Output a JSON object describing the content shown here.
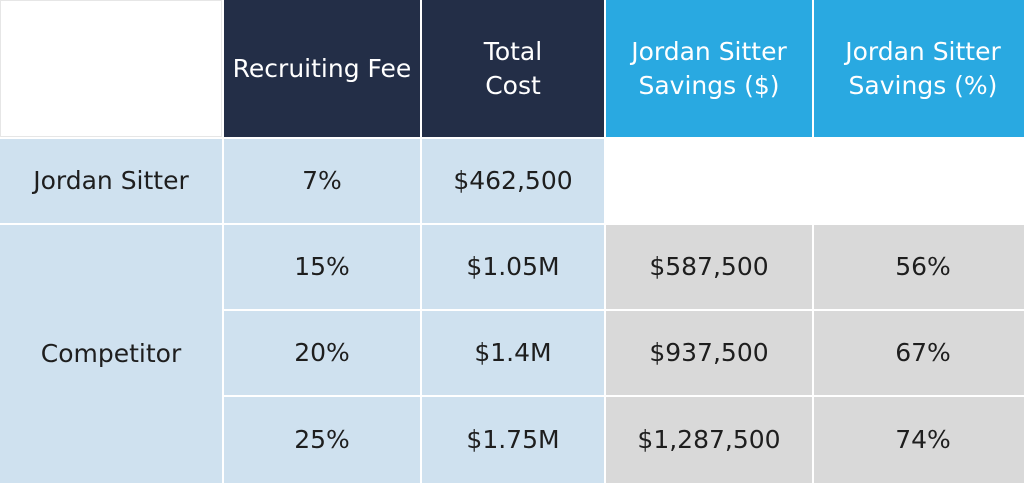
{
  "headers": {
    "recruiting_fee": "Recruiting Fee",
    "total_cost": "Total Cost",
    "savings_dollars": "Jordan Sitter Savings ($)",
    "savings_percent": "Jordan Sitter Savings (%)"
  },
  "rows": {
    "jordan_sitter": {
      "label": "Jordan Sitter",
      "fee": "7%",
      "total_cost": "$462,500"
    },
    "competitor": {
      "label": "Competitor",
      "entries": [
        {
          "fee": "15%",
          "total_cost": "$1.05M",
          "savings_dollars": "$587,500",
          "savings_percent": "56%"
        },
        {
          "fee": "20%",
          "total_cost": "$1.4M",
          "savings_dollars": "$937,500",
          "savings_percent": "67%"
        },
        {
          "fee": "25%",
          "total_cost": "$1.75M",
          "savings_dollars": "$1,287,500",
          "savings_percent": "74%"
        }
      ]
    }
  },
  "colors": {
    "header_dark": "#232e47",
    "header_blue": "#29a9e1",
    "row_light_blue": "#cfe1ef",
    "savings_gray": "#d9d9d9"
  }
}
